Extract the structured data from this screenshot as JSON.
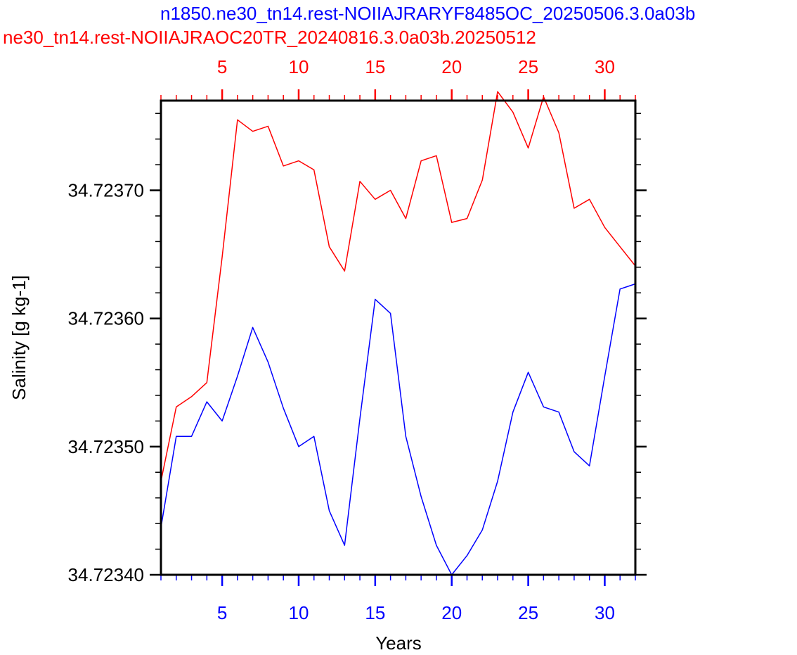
{
  "chart_data": {
    "type": "line",
    "title_top": "n1850.ne30_tn14.rest-NOIIAJRARYF8485OC_20250506.3.0a03b",
    "title_bottom": "ne30_tn14.rest-NOIIAJRAOC20TR_20240816.3.0a03b.20250512",
    "xlabel": "Years",
    "ylabel": "Salinity [g kg-1]",
    "xlim": [
      1,
      32
    ],
    "ylim": [
      34.7234,
      34.72377
    ],
    "xticks": [
      5,
      10,
      15,
      20,
      25,
      30
    ],
    "yticks": [
      34.7234,
      34.7235,
      34.7236,
      34.7237
    ],
    "ytick_labels": [
      "34.72340",
      "34.72350",
      "34.72360",
      "34.72370"
    ],
    "x_minor_step": 1,
    "y_minor_step": 2e-05,
    "grid": false,
    "axes": {
      "bottom": {
        "color": "#0000ff",
        "series": "blue"
      },
      "top": {
        "color": "#ff0000",
        "series": "red"
      }
    },
    "series": [
      {
        "key": "red",
        "color": "#ff0000",
        "x": [
          1,
          2,
          3,
          4,
          5,
          6,
          7,
          8,
          9,
          10,
          11,
          12,
          13,
          14,
          15,
          16,
          17,
          18,
          19,
          20,
          21,
          22,
          23,
          24,
          25,
          26,
          27,
          28,
          29,
          30,
          31,
          32
        ],
        "values": [
          34.723473,
          34.723531,
          34.723539,
          34.72355,
          34.723648,
          34.723755,
          34.723746,
          34.72375,
          34.723719,
          34.723723,
          34.723716,
          34.723656,
          34.723637,
          34.723707,
          34.723693,
          34.7237,
          34.723678,
          34.723723,
          34.723727,
          34.723675,
          34.723678,
          34.723708,
          34.723777,
          34.723761,
          34.723733,
          34.723773,
          34.723745,
          34.723686,
          34.723693,
          34.723671,
          34.723656,
          34.723641
        ]
      },
      {
        "key": "blue",
        "color": "#0000ff",
        "x": [
          1,
          2,
          3,
          4,
          5,
          6,
          7,
          8,
          9,
          10,
          11,
          12,
          13,
          14,
          15,
          16,
          17,
          18,
          19,
          20,
          21,
          22,
          23,
          24,
          25,
          26,
          27,
          28,
          29,
          30,
          31,
          32
        ],
        "values": [
          34.723437,
          34.723508,
          34.723508,
          34.723535,
          34.72352,
          34.723555,
          34.723593,
          34.723566,
          34.72353,
          34.7235,
          34.723508,
          34.72345,
          34.723423,
          34.723522,
          34.723615,
          34.723604,
          34.723508,
          34.723461,
          34.723423,
          34.7234,
          34.723415,
          34.723435,
          34.723473,
          34.723527,
          34.723558,
          34.723531,
          34.723527,
          34.723496,
          34.723485,
          34.723555,
          34.723623,
          34.723627
        ]
      }
    ]
  }
}
